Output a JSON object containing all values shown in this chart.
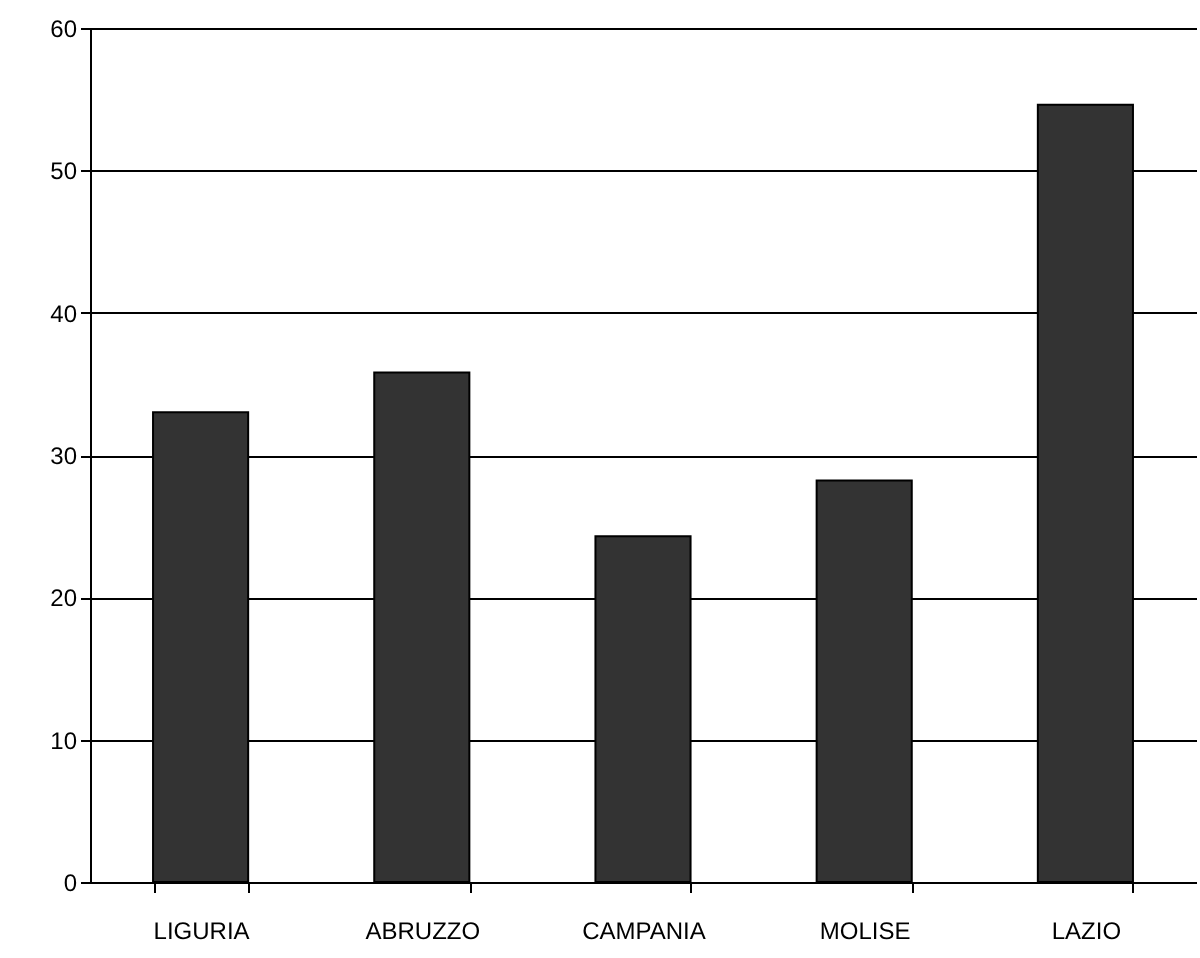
{
  "chart_data": {
    "type": "bar",
    "categories": [
      "LIGURIA",
      "ABRUZZO",
      "CAMPANIA",
      "MOLISE",
      "LAZIO"
    ],
    "values": [
      33,
      35.8,
      24.3,
      28.2,
      54.6
    ],
    "color": "#333333",
    "ylim": [
      0,
      60
    ],
    "yticks": [
      0,
      10,
      20,
      30,
      40,
      50,
      60
    ],
    "grid": "y"
  }
}
